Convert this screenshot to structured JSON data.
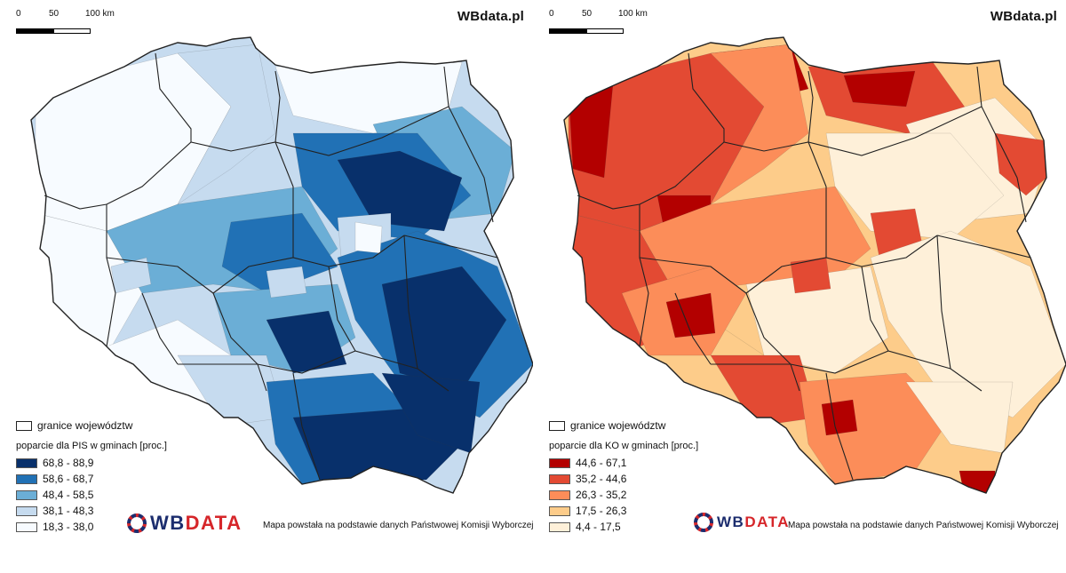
{
  "scale": {
    "labels": [
      "0",
      "50",
      "100 km"
    ]
  },
  "watermark": "WBdata.pl",
  "maps": [
    {
      "id": "pis",
      "legend": {
        "border_label": "granice województw",
        "title": "poparcie dla PIS w gminach [proc.]",
        "classes": [
          {
            "label": "68,8 - 88,9",
            "color": "#08306b"
          },
          {
            "label": "58,6 - 68,7",
            "color": "#2171b5"
          },
          {
            "label": "48,4 - 58,5",
            "color": "#6baed6"
          },
          {
            "label": "38,1 - 48,3",
            "color": "#c6dbef"
          },
          {
            "label": "18,3 - 38,0",
            "color": "#f7fbff"
          }
        ]
      }
    },
    {
      "id": "ko",
      "legend": {
        "border_label": "granice województw",
        "title": "poparcie dla KO w gminach [proc.]",
        "classes": [
          {
            "label": "44,6 - 67,1",
            "color": "#b30000"
          },
          {
            "label": "35,2 - 44,6",
            "color": "#e34a33"
          },
          {
            "label": "26,3 - 35,2",
            "color": "#fc8d59"
          },
          {
            "label": "17,5 - 26,3",
            "color": "#fdcc8a"
          },
          {
            "label": "4,4 - 17,5",
            "color": "#fef0d9"
          }
        ]
      }
    }
  ],
  "logo": {
    "part1": "WB",
    "part2": "DATA"
  },
  "source_note": "Mapa powstała na podstawie danych Państwowej Komisji Wyborczej"
}
